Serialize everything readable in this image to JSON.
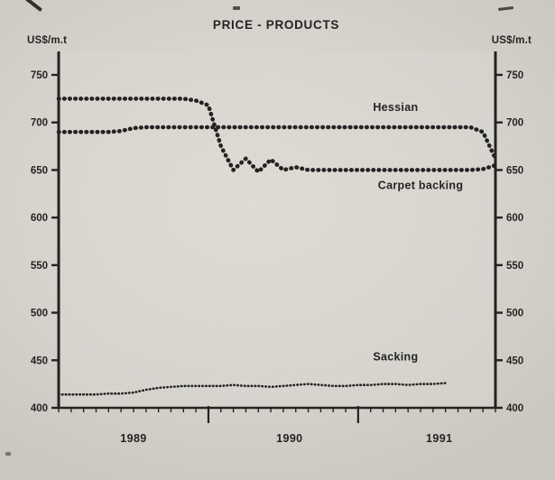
{
  "page": {
    "title": "PRICE - PRODUCTS",
    "y_unit_left": "US$/m.t",
    "y_unit_right": "US$/m.t"
  },
  "colors": {
    "ink": "#1d1d1d",
    "paper": "#d8d5cf",
    "plot_bg": "#dedbd4"
  },
  "chart_data": {
    "type": "line",
    "title": "PRICE - PRODUCTS",
    "ylabel": "US$/m.t",
    "ylim": [
      400,
      750
    ],
    "yticks": [
      400,
      450,
      500,
      550,
      600,
      650,
      700,
      750
    ],
    "grid": false,
    "legend_position": "inline-labels",
    "x_unit": "month",
    "x_years": [
      "1989",
      "1990",
      "1991"
    ],
    "year_boundary_months": [
      12,
      24
    ],
    "year_label_months": [
      6,
      18.5,
      30.5
    ],
    "series": [
      {
        "name": "Hessian",
        "style": "thick-dotted",
        "label": {
          "x_month": 27,
          "value": 712
        },
        "values": [
          690,
          690,
          690,
          690,
          690,
          691,
          694,
          695,
          695,
          695,
          695,
          695,
          695,
          695,
          695,
          695,
          695,
          695,
          695,
          695,
          695,
          695,
          695,
          695,
          695,
          695,
          695,
          695,
          695,
          695,
          695,
          695,
          695,
          695,
          690,
          662
        ]
      },
      {
        "name": "Carpet backing",
        "style": "thick-dotted",
        "label": {
          "x_month": 29,
          "value": 630
        },
        "values": [
          725,
          725,
          725,
          725,
          725,
          725,
          725,
          725,
          725,
          725,
          725,
          723,
          718,
          675,
          650,
          662,
          648,
          661,
          650,
          653,
          650,
          650,
          650,
          650,
          650,
          650,
          650,
          650,
          650,
          650,
          650,
          650,
          650,
          650,
          651,
          655
        ]
      },
      {
        "name": "Sacking",
        "style": "thin-dotted",
        "label": {
          "x_month": 27,
          "value": 450
        },
        "values": [
          414,
          414,
          414,
          414,
          415,
          415,
          416,
          419,
          421,
          422,
          423,
          423,
          423,
          423,
          424,
          423,
          423,
          422,
          423,
          424,
          425,
          424,
          423,
          423,
          424,
          424,
          425,
          425,
          424,
          425,
          425,
          426,
          null,
          null,
          null,
          null
        ]
      }
    ]
  }
}
